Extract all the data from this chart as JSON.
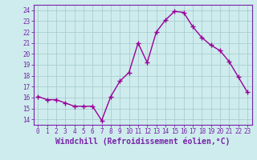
{
  "x": [
    0,
    1,
    2,
    3,
    4,
    5,
    6,
    7,
    8,
    9,
    10,
    11,
    12,
    13,
    14,
    15,
    16,
    17,
    18,
    19,
    20,
    21,
    22,
    23
  ],
  "y": [
    16.1,
    15.8,
    15.8,
    15.5,
    15.2,
    15.2,
    15.2,
    13.9,
    16.1,
    17.5,
    18.3,
    21.0,
    19.2,
    22.0,
    23.1,
    23.9,
    23.8,
    22.5,
    21.5,
    20.8,
    20.3,
    19.3,
    17.9,
    16.5
  ],
  "line_color": "#990099",
  "marker": "+",
  "marker_size": 4,
  "linewidth": 1.0,
  "xlabel": "Windchill (Refroidissement éolien,°C)",
  "xlabel_fontsize": 7,
  "ytick_vals": [
    14,
    15,
    16,
    17,
    18,
    19,
    20,
    21,
    22,
    23,
    24
  ],
  "ytick_labels": [
    "14",
    "15",
    "16",
    "17",
    "18",
    "19",
    "20",
    "21",
    "22",
    "23",
    "24"
  ],
  "ylim": [
    13.5,
    24.5
  ],
  "xlim": [
    -0.5,
    23.5
  ],
  "xtick_labels": [
    "0",
    "1",
    "2",
    "3",
    "4",
    "5",
    "6",
    "7",
    "8",
    "9",
    "10",
    "11",
    "12",
    "13",
    "14",
    "15",
    "16",
    "17",
    "18",
    "19",
    "20",
    "21",
    "22",
    "23"
  ],
  "bg_color": "#ceeced",
  "grid_color": "#aacdd0",
  "tick_fontsize": 5.5,
  "label_color": "#7722aa"
}
